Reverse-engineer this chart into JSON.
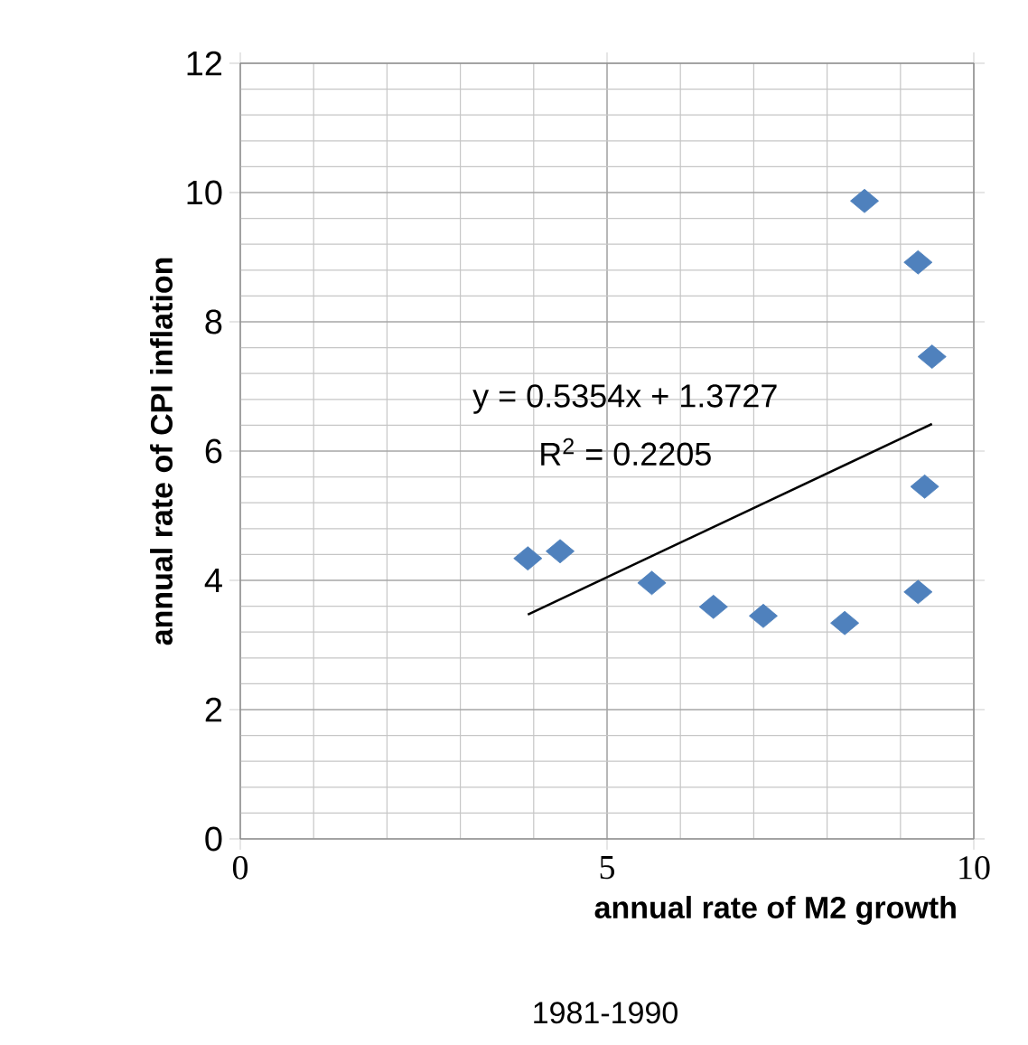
{
  "chart_data": {
    "type": "scatter",
    "xlabel": "annual rate of M2 growth",
    "ylabel": "annual rate of  CPI inflation",
    "annotations": [
      "y = 0.5354x + 1.3727",
      "R$^{2}$ = 0.2205",
      "1981-1990"
    ],
    "series": [
      {
        "color": "#4f81bd",
        "marker": "diamond",
        "x": [
          3.92,
          4.36,
          5.61,
          6.45,
          7.13,
          8.24,
          8.51,
          9.24,
          9.43,
          9.33,
          9.24
        ],
        "values": [
          4.34,
          4.45,
          3.96,
          3.59,
          3.45,
          3.34,
          9.87,
          8.92,
          7.46,
          5.45,
          3.82
        ]
      },
      {
        "type": "line",
        "color": "#000000",
        "marker": "none",
        "x": [
          3.92,
          9.43
        ],
        "values": [
          3.47,
          6.42
        ]
      }
    ],
    "xlim": [
      0,
      10
    ],
    "ylim": [
      0,
      12
    ],
    "xticks": [
      0,
      5,
      10
    ],
    "yticks": [
      0,
      2,
      4,
      6,
      8,
      10,
      12
    ],
    "grid": true
  }
}
